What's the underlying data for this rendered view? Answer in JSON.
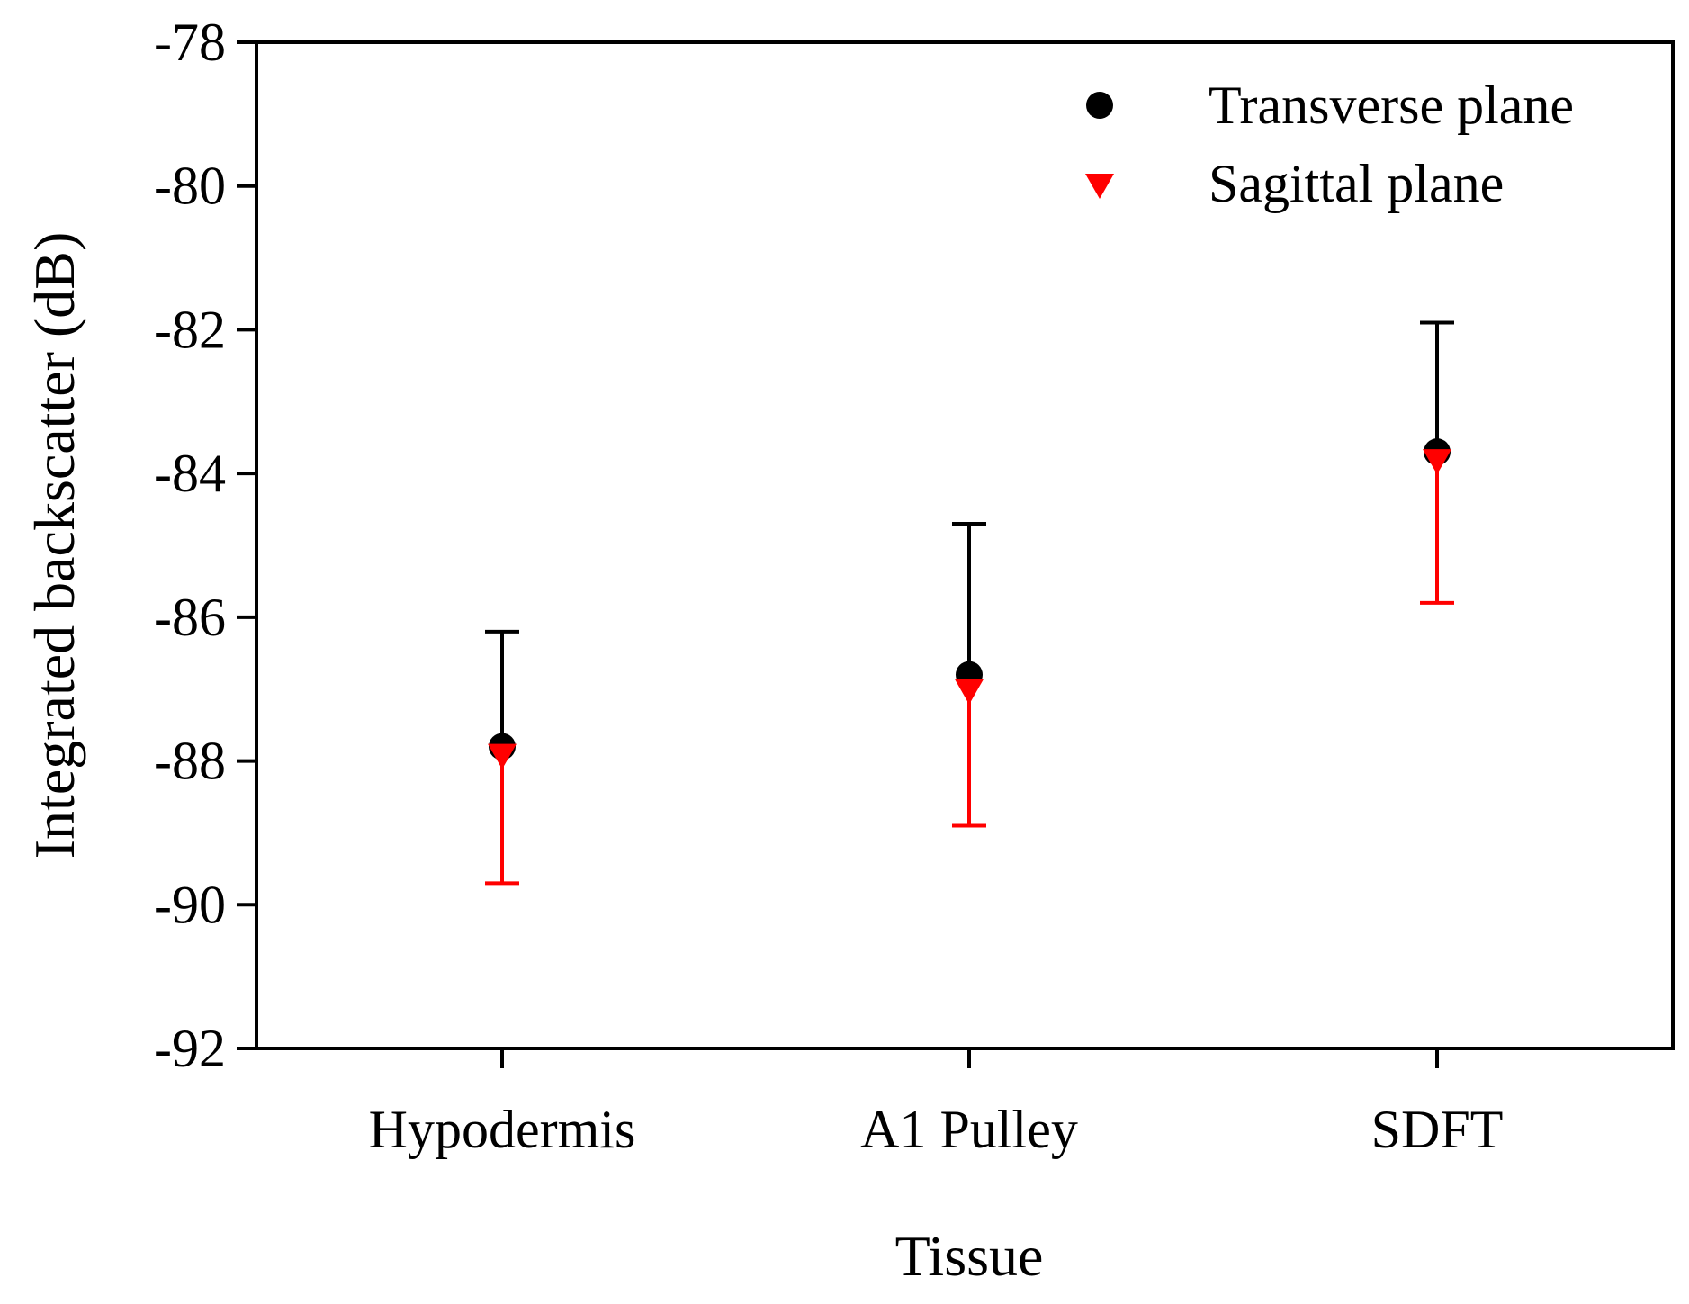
{
  "chart_data": {
    "type": "scatter",
    "title": "",
    "xlabel": "Tissue",
    "ylabel": "Integrated backscatter (dB)",
    "categories": [
      "Hypodermis",
      "A1 Pulley",
      "SDFT"
    ],
    "ylim": [
      -92,
      -78
    ],
    "yticks": [
      -78,
      -80,
      -82,
      -84,
      -86,
      -88,
      -90,
      -92
    ],
    "ytick_labels": [
      "-78",
      "-80",
      "-82",
      "-84",
      "-86",
      "-88",
      "-90",
      "-92"
    ],
    "grid": false,
    "legend_position": "top-right",
    "series": [
      {
        "name": "Transverse plane",
        "marker": "circle",
        "color": "#000000",
        "values": [
          -87.8,
          -86.8,
          -83.7
        ],
        "error_direction": "up",
        "errors": [
          1.6,
          2.1,
          1.8
        ]
      },
      {
        "name": "Sagittal plane",
        "marker": "triangle-down",
        "color": "#ff0000",
        "values": [
          -87.9,
          -87.0,
          -83.8
        ],
        "error_direction": "down",
        "errors": [
          1.8,
          1.9,
          2.0
        ]
      }
    ]
  }
}
